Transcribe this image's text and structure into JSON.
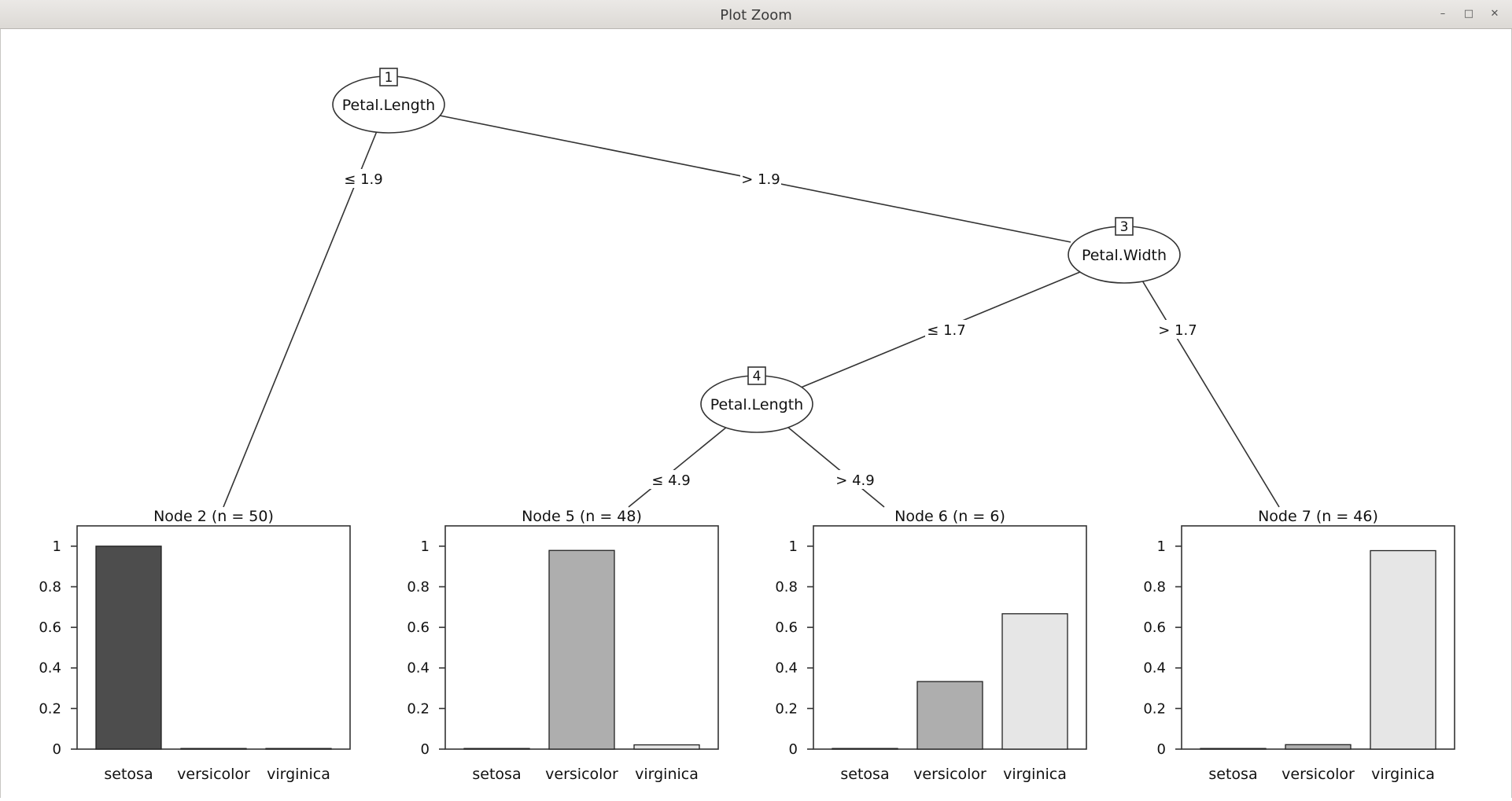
{
  "window": {
    "title": "Plot Zoom",
    "controls": {
      "minimize": "–",
      "restore": "□",
      "close": "✕"
    }
  },
  "tree": {
    "inner_nodes": [
      {
        "id": "1",
        "label": "Petal.Length"
      },
      {
        "id": "3",
        "label": "Petal.Width"
      },
      {
        "id": "4",
        "label": "Petal.Length"
      }
    ],
    "edges": [
      {
        "from": "1",
        "to": "2",
        "label": "≤ 1.9"
      },
      {
        "from": "1",
        "to": "3",
        "label": "> 1.9"
      },
      {
        "from": "3",
        "to": "4",
        "label": "≤ 1.7"
      },
      {
        "from": "3",
        "to": "7",
        "label": "> 1.7"
      },
      {
        "from": "4",
        "to": "5",
        "label": "≤ 4.9"
      },
      {
        "from": "4",
        "to": "6",
        "label": "> 4.9"
      }
    ],
    "terminal_nodes": [
      {
        "id": "2",
        "title": "Node 2 (n = 50)"
      },
      {
        "id": "5",
        "title": "Node 5 (n = 48)"
      },
      {
        "id": "6",
        "title": "Node 6 (n = 6)"
      },
      {
        "id": "7",
        "title": "Node 7 (n = 46)"
      }
    ]
  },
  "chart_data": [
    {
      "type": "bar",
      "title": "Node 2 (n = 50)",
      "categories": [
        "setosa",
        "versicolor",
        "virginica"
      ],
      "values": [
        1.0,
        0.0,
        0.0
      ],
      "colors": [
        "#4d4d4d",
        "#aeaeae",
        "#e6e6e6"
      ],
      "ylim": [
        0,
        1.1
      ],
      "yticks": [
        0,
        0.2,
        0.4,
        0.6,
        0.8,
        1
      ],
      "ytick_labels": [
        "0",
        "0.2",
        "0.4",
        "0.6",
        "0.8",
        "1"
      ]
    },
    {
      "type": "bar",
      "title": "Node 5 (n = 48)",
      "categories": [
        "setosa",
        "versicolor",
        "virginica"
      ],
      "values": [
        0.0,
        0.979,
        0.021
      ],
      "colors": [
        "#4d4d4d",
        "#aeaeae",
        "#e6e6e6"
      ],
      "ylim": [
        0,
        1.1
      ],
      "yticks": [
        0,
        0.2,
        0.4,
        0.6,
        0.8,
        1
      ],
      "ytick_labels": [
        "0",
        "0.2",
        "0.4",
        "0.6",
        "0.8",
        "1"
      ]
    },
    {
      "type": "bar",
      "title": "Node 6 (n = 6)",
      "categories": [
        "setosa",
        "versicolor",
        "virginica"
      ],
      "values": [
        0.0,
        0.333,
        0.667
      ],
      "colors": [
        "#4d4d4d",
        "#aeaeae",
        "#e6e6e6"
      ],
      "ylim": [
        0,
        1.1
      ],
      "yticks": [
        0,
        0.2,
        0.4,
        0.6,
        0.8,
        1
      ],
      "ytick_labels": [
        "0",
        "0.2",
        "0.4",
        "0.6",
        "0.8",
        "1"
      ]
    },
    {
      "type": "bar",
      "title": "Node 7 (n = 46)",
      "categories": [
        "setosa",
        "versicolor",
        "virginica"
      ],
      "values": [
        0.0,
        0.022,
        0.978
      ],
      "colors": [
        "#4d4d4d",
        "#aeaeae",
        "#e6e6e6"
      ],
      "ylim": [
        0,
        1.1
      ],
      "yticks": [
        0,
        0.2,
        0.4,
        0.6,
        0.8,
        1
      ],
      "ytick_labels": [
        "0",
        "0.2",
        "0.4",
        "0.6",
        "0.8",
        "1"
      ]
    }
  ]
}
